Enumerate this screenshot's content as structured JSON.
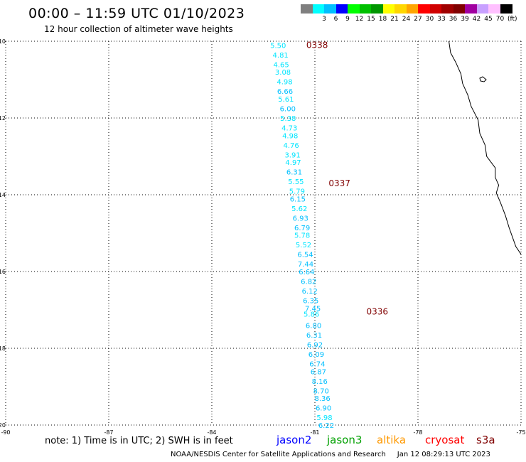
{
  "header": {
    "title": "00:00 – 11:59 UTC 01/10/2023",
    "subtitle": "12 hour collection of altimeter wave heights"
  },
  "legend": {
    "unit": "(ft)",
    "bins": [
      {
        "label": "",
        "color": "#7f7f7f"
      },
      {
        "label": "3",
        "color": "#00ffff"
      },
      {
        "label": "6",
        "color": "#00bfff"
      },
      {
        "label": "9",
        "color": "#0000ff"
      },
      {
        "label": "12",
        "color": "#00ff00"
      },
      {
        "label": "15",
        "color": "#00c000"
      },
      {
        "label": "18",
        "color": "#009600"
      },
      {
        "label": "21",
        "color": "#ffff00"
      },
      {
        "label": "24",
        "color": "#ffd700"
      },
      {
        "label": "27",
        "color": "#ffa500"
      },
      {
        "label": "30",
        "color": "#ff0000"
      },
      {
        "label": "33",
        "color": "#d00000"
      },
      {
        "label": "36",
        "color": "#a00000"
      },
      {
        "label": "39",
        "color": "#800000"
      },
      {
        "label": "42",
        "color": "#a000a0"
      },
      {
        "label": "45",
        "color": "#c8a0ff"
      },
      {
        "label": "70",
        "color": "#ffc0ff"
      },
      {
        "label": "",
        "color": "#000000"
      }
    ]
  },
  "map": {
    "lon_range": [
      -90,
      -75
    ],
    "lat_range": [
      -20,
      -10
    ],
    "x_ticks": [
      -90,
      -87,
      -84,
      -81,
      -78,
      -75
    ],
    "y_ticks": [
      -10,
      -12,
      -14,
      -16,
      -18,
      -20
    ],
    "grid": true,
    "coastline_color": "#000000"
  },
  "track": {
    "pass_labels": [
      {
        "text": "0338",
        "lat": -10.1,
        "lon": -81.25
      },
      {
        "text": "0337",
        "lat": -13.7,
        "lon": -80.6
      },
      {
        "text": "0336",
        "lat": -17.05,
        "lon": -79.5
      }
    ],
    "points": [
      {
        "lat": -10.1,
        "lon": -82.07,
        "swh": "5.50"
      },
      {
        "lat": -10.35,
        "lon": -82.0,
        "swh": "4.81"
      },
      {
        "lat": -10.6,
        "lon": -81.98,
        "swh": "4.65"
      },
      {
        "lat": -10.8,
        "lon": -81.93,
        "swh": "3.08"
      },
      {
        "lat": -11.05,
        "lon": -81.88,
        "swh": "4.98"
      },
      {
        "lat": -11.3,
        "lon": -81.87,
        "swh": "6.66"
      },
      {
        "lat": -11.5,
        "lon": -81.84,
        "swh": "5.61"
      },
      {
        "lat": -11.75,
        "lon": -81.79,
        "swh": "6.00"
      },
      {
        "lat": -12.0,
        "lon": -81.78,
        "swh": "5.38"
      },
      {
        "lat": -12.25,
        "lon": -81.74,
        "swh": "4.73"
      },
      {
        "lat": -12.45,
        "lon": -81.72,
        "swh": "4.98"
      },
      {
        "lat": -12.7,
        "lon": -81.69,
        "swh": "4.76"
      },
      {
        "lat": -12.95,
        "lon": -81.65,
        "swh": "3.91"
      },
      {
        "lat": -13.15,
        "lon": -81.63,
        "swh": "4.97"
      },
      {
        "lat": -13.4,
        "lon": -81.6,
        "swh": "6.31"
      },
      {
        "lat": -13.65,
        "lon": -81.55,
        "swh": "5.55"
      },
      {
        "lat": -13.9,
        "lon": -81.52,
        "swh": "5.79"
      },
      {
        "lat": -14.1,
        "lon": -81.5,
        "swh": "6.15"
      },
      {
        "lat": -14.35,
        "lon": -81.45,
        "swh": "5.62"
      },
      {
        "lat": -14.6,
        "lon": -81.42,
        "swh": "6.93"
      },
      {
        "lat": -14.85,
        "lon": -81.37,
        "swh": "6.79"
      },
      {
        "lat": -15.05,
        "lon": -81.37,
        "swh": "5.78"
      },
      {
        "lat": -15.3,
        "lon": -81.33,
        "swh": "5.52"
      },
      {
        "lat": -15.55,
        "lon": -81.28,
        "swh": "6.54"
      },
      {
        "lat": -15.8,
        "lon": -81.27,
        "swh": "7.44"
      },
      {
        "lat": -16.0,
        "lon": -81.24,
        "swh": "6.64"
      },
      {
        "lat": -16.25,
        "lon": -81.18,
        "swh": "6.82"
      },
      {
        "lat": -16.5,
        "lon": -81.15,
        "swh": "6.12"
      },
      {
        "lat": -16.75,
        "lon": -81.12,
        "swh": "6.35"
      },
      {
        "lat": -16.95,
        "lon": -81.06,
        "swh": "7.45"
      },
      {
        "lat": -17.1,
        "lon": -81.1,
        "swh": "5.86"
      },
      {
        "lat": -17.4,
        "lon": -81.04,
        "swh": "6.80"
      },
      {
        "lat": -17.65,
        "lon": -81.02,
        "swh": "6.31"
      },
      {
        "lat": -17.9,
        "lon": -81.0,
        "swh": "6.92"
      },
      {
        "lat": -18.15,
        "lon": -80.96,
        "swh": "6.09"
      },
      {
        "lat": -18.4,
        "lon": -80.93,
        "swh": "6.74"
      },
      {
        "lat": -18.6,
        "lon": -80.9,
        "swh": "6.87"
      },
      {
        "lat": -18.85,
        "lon": -80.86,
        "swh": "8.16"
      },
      {
        "lat": -19.1,
        "lon": -80.82,
        "swh": "8.70"
      },
      {
        "lat": -19.3,
        "lon": -80.78,
        "swh": "8.36"
      },
      {
        "lat": -19.55,
        "lon": -80.75,
        "swh": "6.90"
      },
      {
        "lat": -19.8,
        "lon": -80.72,
        "swh": "5.98"
      },
      {
        "lat": -20.0,
        "lon": -80.67,
        "swh": "6.22"
      }
    ]
  },
  "footer": {
    "note": "note: 1) Time is in UTC; 2) SWH is in feet",
    "satellites": [
      {
        "name": "jason2",
        "color": "#0000ff"
      },
      {
        "name": "jason3",
        "color": "#00a000"
      },
      {
        "name": "altika",
        "color": "#ff9900"
      },
      {
        "name": "cryosat",
        "color": "#ff0000"
      },
      {
        "name": "s3a",
        "color": "#800000"
      }
    ],
    "credit": "NOAA/NESDIS Center for Satellite Applications and Research",
    "timestamp": "Jan 12 08:29:13 UTC 2023"
  }
}
